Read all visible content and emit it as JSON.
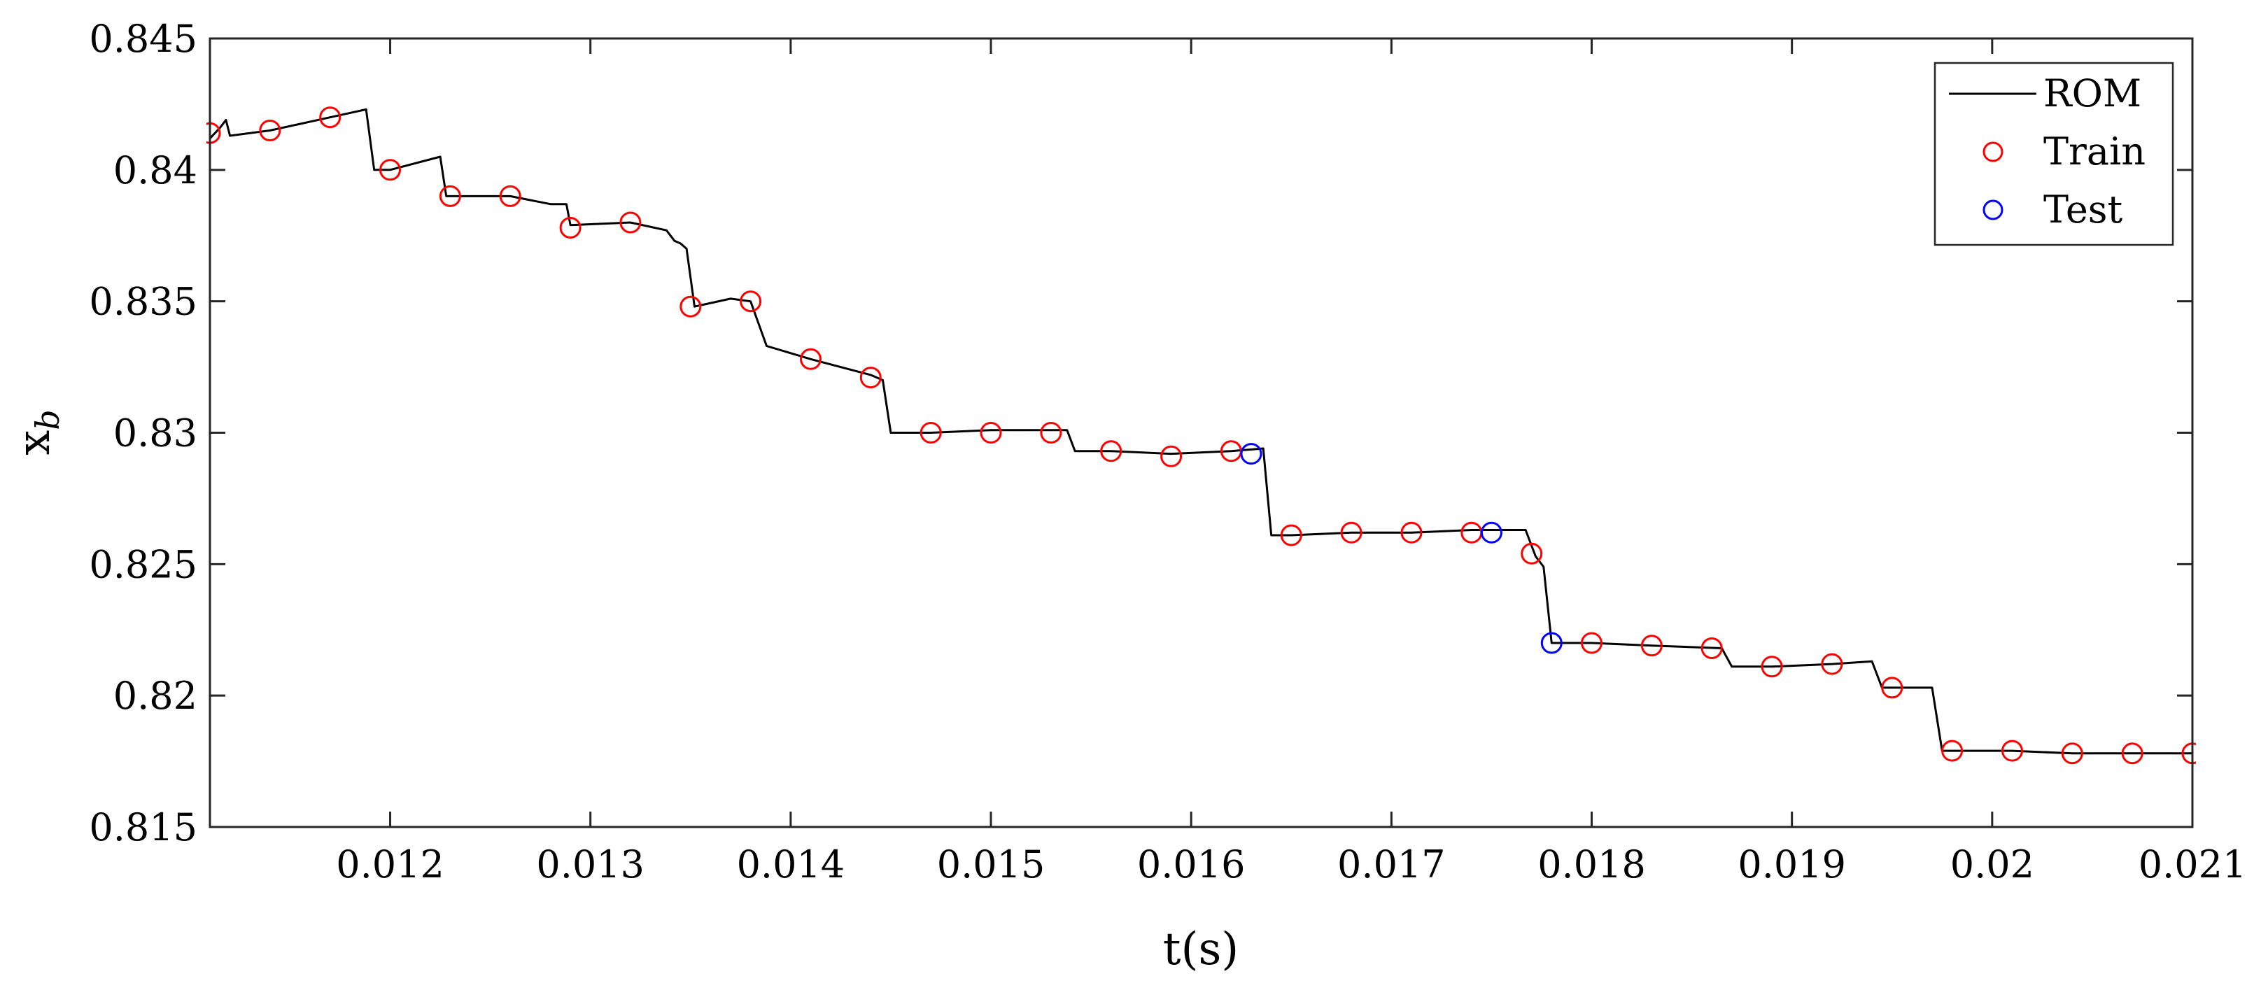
{
  "chart_data": {
    "type": "line",
    "title": "",
    "xlabel": "t(s)",
    "ylabel": "x",
    "ylabel_subscript": "b",
    "xlim": [
      0.0111,
      0.021
    ],
    "ylim": [
      0.815,
      0.845
    ],
    "xticks": [
      0.012,
      0.013,
      0.014,
      0.015,
      0.016,
      0.017,
      0.018,
      0.019,
      0.02,
      0.021
    ],
    "xtick_labels": [
      "0.012",
      "0.013",
      "0.014",
      "0.015",
      "0.016",
      "0.017",
      "0.018",
      "0.019",
      "0.02",
      "0.021"
    ],
    "yticks": [
      0.815,
      0.82,
      0.825,
      0.83,
      0.835,
      0.84,
      0.845
    ],
    "ytick_labels": [
      "0.815",
      "0.82",
      "0.825",
      "0.83",
      "0.835",
      "0.84",
      "0.845"
    ],
    "grid": false,
    "legend_position": "top-right",
    "series": [
      {
        "name": "ROM",
        "kind": "line",
        "color": "#000000",
        "points": [
          [
            0.0111,
            0.8412
          ],
          [
            0.01115,
            0.8416
          ],
          [
            0.01118,
            0.8419
          ],
          [
            0.0112,
            0.8413
          ],
          [
            0.0114,
            0.8415
          ],
          [
            0.0117,
            0.842
          ],
          [
            0.01188,
            0.8423
          ],
          [
            0.01192,
            0.84
          ],
          [
            0.012,
            0.84
          ],
          [
            0.01225,
            0.8405
          ],
          [
            0.01228,
            0.839
          ],
          [
            0.0126,
            0.839
          ],
          [
            0.0128,
            0.8387
          ],
          [
            0.01288,
            0.8387
          ],
          [
            0.0129,
            0.8379
          ],
          [
            0.0132,
            0.838
          ],
          [
            0.01338,
            0.8377
          ],
          [
            0.01342,
            0.8373
          ],
          [
            0.01345,
            0.8372
          ],
          [
            0.01348,
            0.837
          ],
          [
            0.01352,
            0.8348
          ],
          [
            0.0137,
            0.8351
          ],
          [
            0.0138,
            0.835
          ],
          [
            0.01388,
            0.8333
          ],
          [
            0.0141,
            0.8328
          ],
          [
            0.0144,
            0.8322
          ],
          [
            0.01446,
            0.832
          ],
          [
            0.0145,
            0.83
          ],
          [
            0.0147,
            0.83
          ],
          [
            0.015,
            0.8301
          ],
          [
            0.0153,
            0.8301
          ],
          [
            0.01538,
            0.8301
          ],
          [
            0.01542,
            0.8293
          ],
          [
            0.0156,
            0.8293
          ],
          [
            0.0159,
            0.8292
          ],
          [
            0.0162,
            0.8293
          ],
          [
            0.01636,
            0.8294
          ],
          [
            0.0164,
            0.8261
          ],
          [
            0.0165,
            0.8261
          ],
          [
            0.0168,
            0.8262
          ],
          [
            0.0171,
            0.8262
          ],
          [
            0.0174,
            0.8263
          ],
          [
            0.01767,
            0.8263
          ],
          [
            0.01772,
            0.8253
          ],
          [
            0.01776,
            0.8249
          ],
          [
            0.0178,
            0.822
          ],
          [
            0.018,
            0.822
          ],
          [
            0.0183,
            0.8219
          ],
          [
            0.01865,
            0.8218
          ],
          [
            0.0187,
            0.8211
          ],
          [
            0.0189,
            0.8211
          ],
          [
            0.0192,
            0.8212
          ],
          [
            0.0194,
            0.8213
          ],
          [
            0.01945,
            0.8203
          ],
          [
            0.0197,
            0.8203
          ],
          [
            0.01975,
            0.8179
          ],
          [
            0.0198,
            0.8179
          ],
          [
            0.0201,
            0.8179
          ],
          [
            0.0204,
            0.8178
          ],
          [
            0.0207,
            0.8178
          ],
          [
            0.021,
            0.8178
          ]
        ]
      },
      {
        "name": "Train",
        "kind": "marker",
        "color": "#ff0000",
        "points": [
          [
            0.0111,
            0.8414
          ],
          [
            0.0114,
            0.8415
          ],
          [
            0.0117,
            0.842
          ],
          [
            0.012,
            0.84
          ],
          [
            0.0123,
            0.839
          ],
          [
            0.0126,
            0.839
          ],
          [
            0.0129,
            0.8378
          ],
          [
            0.0132,
            0.838
          ],
          [
            0.0135,
            0.8348
          ],
          [
            0.0138,
            0.835
          ],
          [
            0.0141,
            0.8328
          ],
          [
            0.0144,
            0.8321
          ],
          [
            0.0147,
            0.83
          ],
          [
            0.015,
            0.83
          ],
          [
            0.0153,
            0.83
          ],
          [
            0.0156,
            0.8293
          ],
          [
            0.0159,
            0.8291
          ],
          [
            0.0162,
            0.8293
          ],
          [
            0.0165,
            0.8261
          ],
          [
            0.0168,
            0.8262
          ],
          [
            0.0171,
            0.8262
          ],
          [
            0.0174,
            0.8262
          ],
          [
            0.0177,
            0.8254
          ],
          [
            0.018,
            0.822
          ],
          [
            0.0183,
            0.8219
          ],
          [
            0.0186,
            0.8218
          ],
          [
            0.0189,
            0.8211
          ],
          [
            0.0192,
            0.8212
          ],
          [
            0.0195,
            0.8203
          ],
          [
            0.0198,
            0.8179
          ],
          [
            0.0201,
            0.8179
          ],
          [
            0.0204,
            0.8178
          ],
          [
            0.0207,
            0.8178
          ],
          [
            0.021,
            0.8178
          ]
        ]
      },
      {
        "name": "Test",
        "kind": "marker",
        "color": "#0000ff",
        "points": [
          [
            0.0163,
            0.8292
          ],
          [
            0.0175,
            0.8262
          ],
          [
            0.0178,
            0.822
          ]
        ]
      }
    ]
  }
}
